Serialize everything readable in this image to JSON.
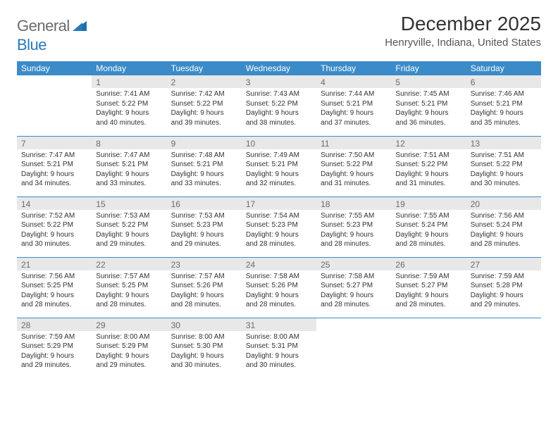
{
  "logo": {
    "general": "General",
    "blue": "Blue",
    "sail_color": "#1f6fab"
  },
  "title": "December 2025",
  "location": "Henryville, Indiana, United States",
  "colors": {
    "header_bg": "#3b8bc8",
    "header_fg": "#ffffff",
    "daynum_bg": "#e8e8e8",
    "daynum_fg": "#6b6b6b",
    "rule": "#3b8bc8",
    "text": "#333333",
    "page_bg": "#ffffff"
  },
  "weekdays": [
    "Sunday",
    "Monday",
    "Tuesday",
    "Wednesday",
    "Thursday",
    "Friday",
    "Saturday"
  ],
  "weeks": [
    [
      {
        "empty": true
      },
      {
        "day": "1",
        "sunrise": "Sunrise: 7:41 AM",
        "sunset": "Sunset: 5:22 PM",
        "daylight": "Daylight: 9 hours and 40 minutes."
      },
      {
        "day": "2",
        "sunrise": "Sunrise: 7:42 AM",
        "sunset": "Sunset: 5:22 PM",
        "daylight": "Daylight: 9 hours and 39 minutes."
      },
      {
        "day": "3",
        "sunrise": "Sunrise: 7:43 AM",
        "sunset": "Sunset: 5:22 PM",
        "daylight": "Daylight: 9 hours and 38 minutes."
      },
      {
        "day": "4",
        "sunrise": "Sunrise: 7:44 AM",
        "sunset": "Sunset: 5:21 PM",
        "daylight": "Daylight: 9 hours and 37 minutes."
      },
      {
        "day": "5",
        "sunrise": "Sunrise: 7:45 AM",
        "sunset": "Sunset: 5:21 PM",
        "daylight": "Daylight: 9 hours and 36 minutes."
      },
      {
        "day": "6",
        "sunrise": "Sunrise: 7:46 AM",
        "sunset": "Sunset: 5:21 PM",
        "daylight": "Daylight: 9 hours and 35 minutes."
      }
    ],
    [
      {
        "day": "7",
        "sunrise": "Sunrise: 7:47 AM",
        "sunset": "Sunset: 5:21 PM",
        "daylight": "Daylight: 9 hours and 34 minutes."
      },
      {
        "day": "8",
        "sunrise": "Sunrise: 7:47 AM",
        "sunset": "Sunset: 5:21 PM",
        "daylight": "Daylight: 9 hours and 33 minutes."
      },
      {
        "day": "9",
        "sunrise": "Sunrise: 7:48 AM",
        "sunset": "Sunset: 5:21 PM",
        "daylight": "Daylight: 9 hours and 33 minutes."
      },
      {
        "day": "10",
        "sunrise": "Sunrise: 7:49 AM",
        "sunset": "Sunset: 5:21 PM",
        "daylight": "Daylight: 9 hours and 32 minutes."
      },
      {
        "day": "11",
        "sunrise": "Sunrise: 7:50 AM",
        "sunset": "Sunset: 5:22 PM",
        "daylight": "Daylight: 9 hours and 31 minutes."
      },
      {
        "day": "12",
        "sunrise": "Sunrise: 7:51 AM",
        "sunset": "Sunset: 5:22 PM",
        "daylight": "Daylight: 9 hours and 31 minutes."
      },
      {
        "day": "13",
        "sunrise": "Sunrise: 7:51 AM",
        "sunset": "Sunset: 5:22 PM",
        "daylight": "Daylight: 9 hours and 30 minutes."
      }
    ],
    [
      {
        "day": "14",
        "sunrise": "Sunrise: 7:52 AM",
        "sunset": "Sunset: 5:22 PM",
        "daylight": "Daylight: 9 hours and 30 minutes."
      },
      {
        "day": "15",
        "sunrise": "Sunrise: 7:53 AM",
        "sunset": "Sunset: 5:22 PM",
        "daylight": "Daylight: 9 hours and 29 minutes."
      },
      {
        "day": "16",
        "sunrise": "Sunrise: 7:53 AM",
        "sunset": "Sunset: 5:23 PM",
        "daylight": "Daylight: 9 hours and 29 minutes."
      },
      {
        "day": "17",
        "sunrise": "Sunrise: 7:54 AM",
        "sunset": "Sunset: 5:23 PM",
        "daylight": "Daylight: 9 hours and 28 minutes."
      },
      {
        "day": "18",
        "sunrise": "Sunrise: 7:55 AM",
        "sunset": "Sunset: 5:23 PM",
        "daylight": "Daylight: 9 hours and 28 minutes."
      },
      {
        "day": "19",
        "sunrise": "Sunrise: 7:55 AM",
        "sunset": "Sunset: 5:24 PM",
        "daylight": "Daylight: 9 hours and 28 minutes."
      },
      {
        "day": "20",
        "sunrise": "Sunrise: 7:56 AM",
        "sunset": "Sunset: 5:24 PM",
        "daylight": "Daylight: 9 hours and 28 minutes."
      }
    ],
    [
      {
        "day": "21",
        "sunrise": "Sunrise: 7:56 AM",
        "sunset": "Sunset: 5:25 PM",
        "daylight": "Daylight: 9 hours and 28 minutes."
      },
      {
        "day": "22",
        "sunrise": "Sunrise: 7:57 AM",
        "sunset": "Sunset: 5:25 PM",
        "daylight": "Daylight: 9 hours and 28 minutes."
      },
      {
        "day": "23",
        "sunrise": "Sunrise: 7:57 AM",
        "sunset": "Sunset: 5:26 PM",
        "daylight": "Daylight: 9 hours and 28 minutes."
      },
      {
        "day": "24",
        "sunrise": "Sunrise: 7:58 AM",
        "sunset": "Sunset: 5:26 PM",
        "daylight": "Daylight: 9 hours and 28 minutes."
      },
      {
        "day": "25",
        "sunrise": "Sunrise: 7:58 AM",
        "sunset": "Sunset: 5:27 PM",
        "daylight": "Daylight: 9 hours and 28 minutes."
      },
      {
        "day": "26",
        "sunrise": "Sunrise: 7:59 AM",
        "sunset": "Sunset: 5:27 PM",
        "daylight": "Daylight: 9 hours and 28 minutes."
      },
      {
        "day": "27",
        "sunrise": "Sunrise: 7:59 AM",
        "sunset": "Sunset: 5:28 PM",
        "daylight": "Daylight: 9 hours and 29 minutes."
      }
    ],
    [
      {
        "day": "28",
        "sunrise": "Sunrise: 7:59 AM",
        "sunset": "Sunset: 5:29 PM",
        "daylight": "Daylight: 9 hours and 29 minutes."
      },
      {
        "day": "29",
        "sunrise": "Sunrise: 8:00 AM",
        "sunset": "Sunset: 5:29 PM",
        "daylight": "Daylight: 9 hours and 29 minutes."
      },
      {
        "day": "30",
        "sunrise": "Sunrise: 8:00 AM",
        "sunset": "Sunset: 5:30 PM",
        "daylight": "Daylight: 9 hours and 30 minutes."
      },
      {
        "day": "31",
        "sunrise": "Sunrise: 8:00 AM",
        "sunset": "Sunset: 5:31 PM",
        "daylight": "Daylight: 9 hours and 30 minutes."
      },
      {
        "empty": true
      },
      {
        "empty": true
      },
      {
        "empty": true
      }
    ]
  ]
}
